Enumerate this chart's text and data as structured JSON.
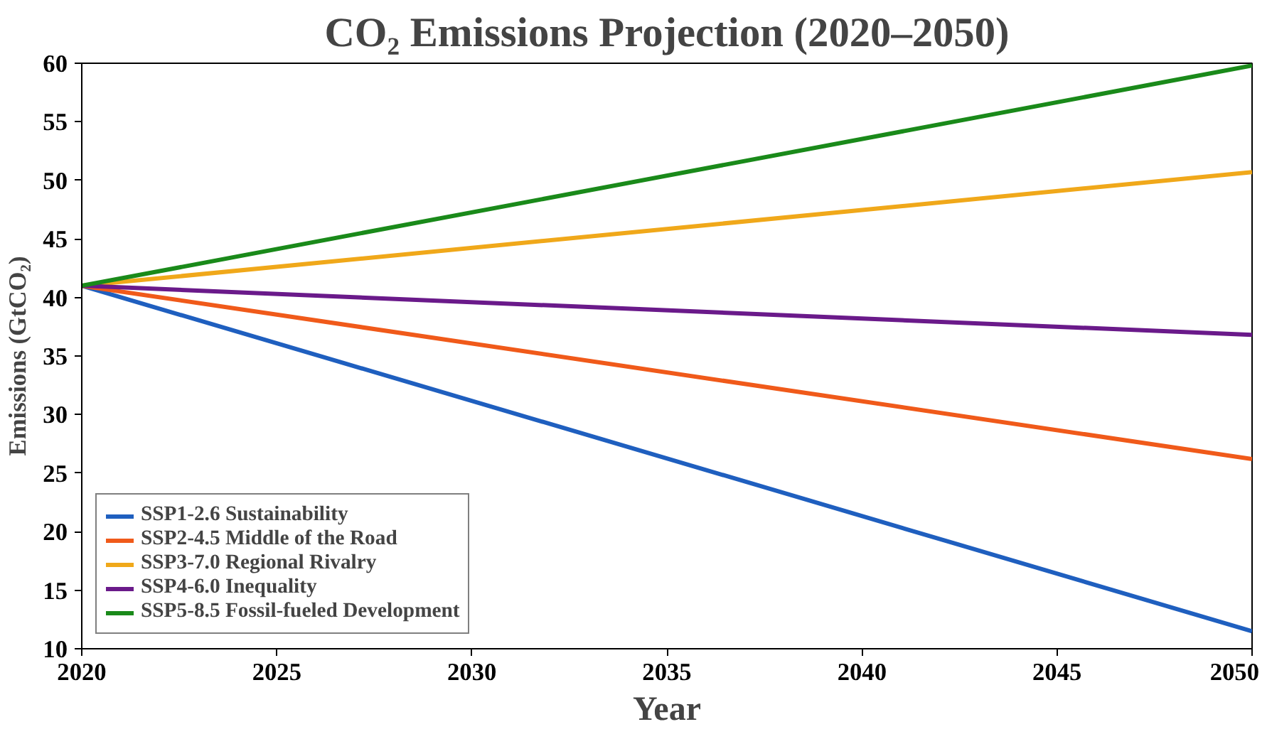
{
  "chart_data": {
    "type": "line",
    "title": "CO₂ Emissions Projection (2020–2050)",
    "xlabel": "Year",
    "ylabel": "Emissions (GtCO₂)",
    "x": [
      2020,
      2050
    ],
    "series": [
      {
        "name": "SSP1-2.6 Sustainability",
        "color": "#1f5fbf",
        "values": [
          41,
          11.5
        ]
      },
      {
        "name": "SSP2-4.5 Middle of the Road",
        "color": "#f05a1a",
        "values": [
          41,
          26.2
        ]
      },
      {
        "name": "SSP3-7.0 Regional Rivalry",
        "color": "#f0a81a",
        "values": [
          41,
          50.7
        ]
      },
      {
        "name": "SSP4-6.0 Inequality",
        "color": "#6a1a8a",
        "values": [
          41,
          36.8
        ]
      },
      {
        "name": "SSP5-8.5 Fossil-fueled Development",
        "color": "#1a8a1a",
        "values": [
          41,
          59.8
        ]
      }
    ],
    "xlim": [
      2020,
      2050
    ],
    "xticks": [
      2020,
      2025,
      2030,
      2035,
      2040,
      2045,
      2050
    ],
    "ylim": [
      10,
      60
    ],
    "yticks": [
      10,
      15,
      20,
      25,
      30,
      35,
      40,
      45,
      50,
      55,
      60
    ],
    "grid": false,
    "legend": "bottom left",
    "line_style": "solid",
    "marker": "none"
  }
}
